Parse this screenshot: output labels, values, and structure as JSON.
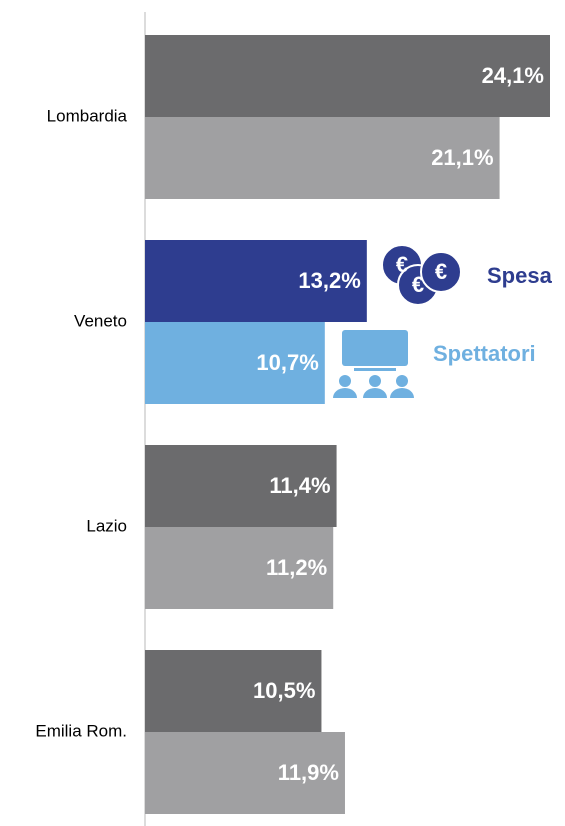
{
  "chart_data": {
    "type": "bar",
    "orientation": "horizontal",
    "categories": [
      "Lombardia",
      "Veneto",
      "Lazio",
      "Emilia Rom."
    ],
    "series": [
      {
        "name": "Spesa",
        "color": "#2e3d8f",
        "colors": [
          "#6b6b6d",
          "#2e3d8f",
          "#6b6b6d",
          "#6b6b6d"
        ],
        "values": [
          24.1,
          13.2,
          11.4,
          10.5
        ],
        "value_labels": [
          "24,1%",
          "13,2%",
          "11,4%",
          "10,5%"
        ]
      },
      {
        "name": "Spettatori",
        "color": "#6fb0e0",
        "colors": [
          "#a0a0a2",
          "#6fb0e0",
          "#a0a0a2",
          "#a0a0a2"
        ],
        "values": [
          21.1,
          10.7,
          11.2,
          11.9
        ],
        "value_labels": [
          "21,1%",
          "10,7%",
          "11,2%",
          "11,9%"
        ]
      }
    ]
  }
}
